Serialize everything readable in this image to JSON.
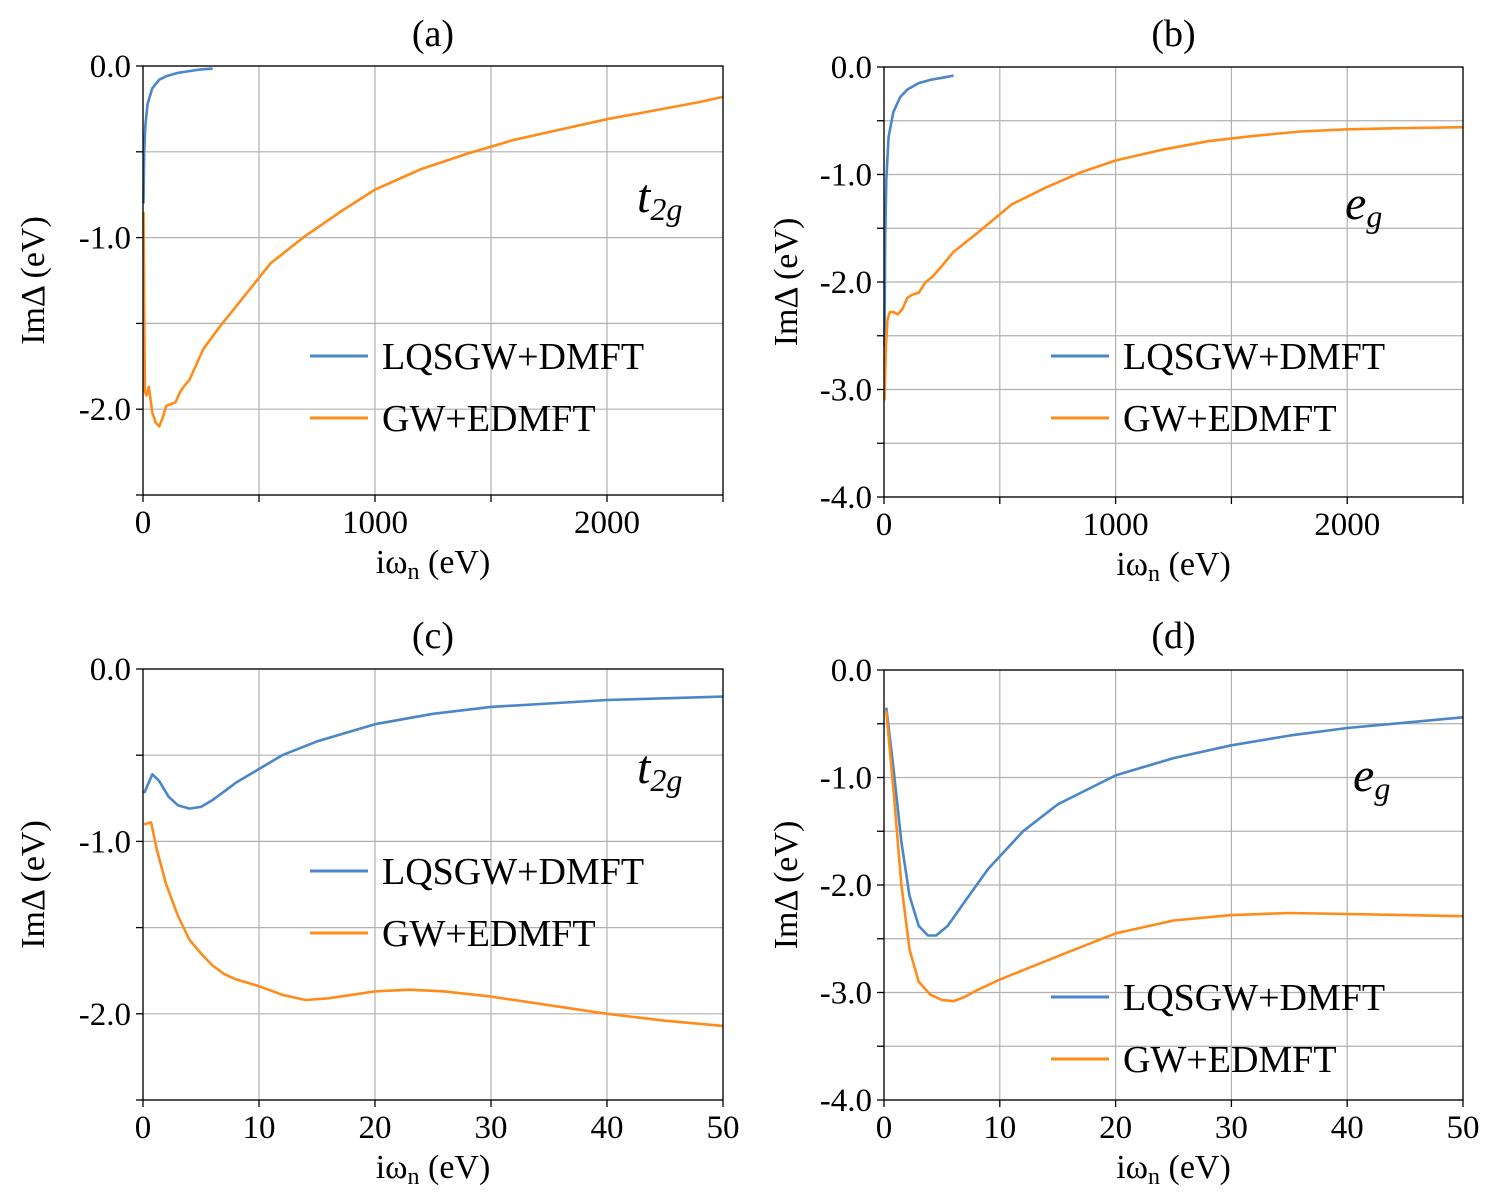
{
  "chart_data": [
    {
      "type": "line",
      "title": "(a)",
      "orbital": {
        "base": "t",
        "sub": "2g"
      },
      "xlabel": {
        "base": "iω",
        "sub": "n",
        "unit": " (eV)"
      },
      "ylabel": "ImΔ (eV)",
      "xlim": [
        0,
        2500
      ],
      "ylim": [
        -2.5,
        0.0
      ],
      "xticks": [
        0,
        1000,
        2000
      ],
      "xtick_labels": [
        "0",
        "1000",
        "2000"
      ],
      "xgrid": [
        0,
        500,
        1000,
        1500,
        2000,
        2500
      ],
      "yticks": [
        0.0,
        -1.0,
        -2.0
      ],
      "ytick_labels": [
        "0.0",
        "-1.0",
        "-2.0"
      ],
      "ygrid": [
        0.0,
        -0.5,
        -1.0,
        -1.5,
        -2.0,
        -2.5
      ],
      "legend": "center-right",
      "series": [
        {
          "name": "LQSGW+DMFT",
          "color": "#4a86c8",
          "x": [
            2,
            5,
            10,
            20,
            40,
            70,
            100,
            150,
            200,
            250,
            300
          ],
          "y": [
            -0.8,
            -0.5,
            -0.35,
            -0.22,
            -0.13,
            -0.08,
            -0.06,
            -0.04,
            -0.03,
            -0.02,
            -0.015
          ]
        },
        {
          "name": "GW+EDMFT",
          "color": "#ff8c1a",
          "x": [
            2,
            8,
            15,
            25,
            40,
            55,
            70,
            85,
            100,
            120,
            140,
            160,
            180,
            200,
            260,
            330,
            420,
            550,
            700,
            850,
            1000,
            1200,
            1400,
            1600,
            1800,
            2000,
            2200,
            2400,
            2500
          ],
          "y": [
            -0.85,
            -1.9,
            -1.92,
            -1.87,
            -2.02,
            -2.08,
            -2.1,
            -2.05,
            -1.98,
            -1.97,
            -1.96,
            -1.9,
            -1.86,
            -1.83,
            -1.65,
            -1.52,
            -1.37,
            -1.15,
            -0.99,
            -0.85,
            -0.72,
            -0.6,
            -0.51,
            -0.43,
            -0.37,
            -0.31,
            -0.26,
            -0.21,
            -0.18
          ]
        }
      ]
    },
    {
      "type": "line",
      "title": "(b)",
      "orbital": {
        "base": "e",
        "sub": "g"
      },
      "xlabel": {
        "base": "iω",
        "sub": "n",
        "unit": " (eV)"
      },
      "ylabel": "ImΔ (eV)",
      "xlim": [
        0,
        2500
      ],
      "ylim": [
        -4.0,
        0.0
      ],
      "xticks": [
        0,
        1000,
        2000
      ],
      "xtick_labels": [
        "0",
        "1000",
        "2000"
      ],
      "xgrid": [
        0,
        500,
        1000,
        1500,
        2000,
        2500
      ],
      "yticks": [
        0.0,
        -1.0,
        -2.0,
        -3.0,
        -4.0
      ],
      "ytick_labels": [
        "0.0",
        "-1.0",
        "-2.0",
        "-3.0",
        "-4.0"
      ],
      "ygrid": [
        0.0,
        -0.5,
        -1.0,
        -1.5,
        -2.0,
        -2.5,
        -3.0,
        -3.5,
        -4.0
      ],
      "legend": "center-right",
      "series": [
        {
          "name": "LQSGW+DMFT",
          "color": "#4a86c8",
          "x": [
            2,
            5,
            10,
            20,
            40,
            70,
            100,
            150,
            200,
            250,
            300
          ],
          "y": [
            -2.6,
            -1.6,
            -1.05,
            -0.65,
            -0.42,
            -0.28,
            -0.21,
            -0.15,
            -0.12,
            -0.1,
            -0.08
          ]
        },
        {
          "name": "GW+EDMFT",
          "color": "#ff8c1a",
          "x": [
            2,
            8,
            15,
            25,
            40,
            60,
            80,
            100,
            120,
            150,
            180,
            210,
            250,
            300,
            400,
            550,
            700,
            850,
            1000,
            1200,
            1400,
            1600,
            1800,
            2000,
            2200,
            2500
          ],
          "y": [
            -3.1,
            -2.6,
            -2.35,
            -2.28,
            -2.28,
            -2.3,
            -2.25,
            -2.15,
            -2.12,
            -2.1,
            -2.0,
            -1.95,
            -1.85,
            -1.72,
            -1.55,
            -1.28,
            -1.12,
            -0.98,
            -0.87,
            -0.77,
            -0.69,
            -0.64,
            -0.6,
            -0.58,
            -0.57,
            -0.56
          ]
        }
      ]
    },
    {
      "type": "line",
      "title": "(c)",
      "orbital": {
        "base": "t",
        "sub": "2g"
      },
      "xlabel": {
        "base": "iω",
        "sub": "n",
        "unit": " (eV)"
      },
      "ylabel": "ImΔ (eV)",
      "xlim": [
        0,
        50
      ],
      "ylim": [
        -2.5,
        0.0
      ],
      "xticks": [
        0,
        10,
        20,
        30,
        40,
        50
      ],
      "xtick_labels": [
        "0",
        "10",
        "20",
        "30",
        "40",
        "50"
      ],
      "xgrid": [
        0,
        10,
        20,
        30,
        40,
        50
      ],
      "yticks": [
        0.0,
        -1.0,
        -2.0
      ],
      "ytick_labels": [
        "0.0",
        "-1.0",
        "-2.0"
      ],
      "ygrid": [
        0.0,
        -0.5,
        -1.0,
        -1.5,
        -2.0,
        -2.5
      ],
      "legend": "center-right",
      "series": [
        {
          "name": "LQSGW+DMFT",
          "color": "#4a86c8",
          "x": [
            0.1,
            0.8,
            1.4,
            2.2,
            3,
            4,
            5,
            6,
            7,
            8,
            10,
            12,
            15,
            20,
            25,
            30,
            35,
            40,
            45,
            50
          ],
          "y": [
            -0.72,
            -0.61,
            -0.65,
            -0.74,
            -0.79,
            -0.81,
            -0.8,
            -0.76,
            -0.71,
            -0.66,
            -0.58,
            -0.5,
            -0.42,
            -0.32,
            -0.26,
            -0.22,
            -0.2,
            -0.18,
            -0.17,
            -0.16
          ]
        },
        {
          "name": "GW+EDMFT",
          "color": "#ff8c1a",
          "x": [
            0.1,
            0.7,
            1.2,
            2,
            3,
            4,
            5,
            6,
            7,
            8,
            10,
            12,
            14,
            16,
            18,
            20,
            23,
            26,
            30,
            35,
            40,
            45,
            50
          ],
          "y": [
            -0.9,
            -0.89,
            -1.05,
            -1.25,
            -1.43,
            -1.57,
            -1.65,
            -1.72,
            -1.77,
            -1.8,
            -1.84,
            -1.89,
            -1.92,
            -1.91,
            -1.89,
            -1.87,
            -1.86,
            -1.87,
            -1.9,
            -1.95,
            -2.0,
            -2.04,
            -2.07
          ]
        }
      ]
    },
    {
      "type": "line",
      "title": "(d)",
      "orbital": {
        "base": "e",
        "sub": "g"
      },
      "xlabel": {
        "base": "iω",
        "sub": "n",
        "unit": " (eV)"
      },
      "ylabel": "ImΔ (eV)",
      "xlim": [
        0,
        50
      ],
      "ylim": [
        -4.0,
        0.0
      ],
      "xticks": [
        0,
        10,
        20,
        30,
        40,
        50
      ],
      "xtick_labels": [
        "0",
        "10",
        "20",
        "30",
        "40",
        "50"
      ],
      "xgrid": [
        0,
        10,
        20,
        30,
        40,
        50
      ],
      "yticks": [
        0.0,
        -1.0,
        -2.0,
        -3.0,
        -4.0
      ],
      "ytick_labels": [
        "0.0",
        "-1.0",
        "-2.0",
        "-3.0",
        "-4.0"
      ],
      "ygrid": [
        0.0,
        -0.5,
        -1.0,
        -1.5,
        -2.0,
        -2.5,
        -3.0,
        -3.5,
        -4.0
      ],
      "legend": "lower-right",
      "series": [
        {
          "name": "LQSGW+DMFT",
          "color": "#4a86c8",
          "x": [
            0.2,
            0.8,
            1.5,
            2.2,
            3,
            3.8,
            4.5,
            5.5,
            7,
            9,
            12,
            15,
            20,
            25,
            30,
            35,
            40,
            45,
            50
          ],
          "y": [
            -0.35,
            -0.9,
            -1.6,
            -2.1,
            -2.38,
            -2.47,
            -2.47,
            -2.38,
            -2.15,
            -1.85,
            -1.5,
            -1.25,
            -0.98,
            -0.82,
            -0.7,
            -0.61,
            -0.54,
            -0.49,
            -0.44
          ]
        },
        {
          "name": "GW+EDMFT",
          "color": "#ff8c1a",
          "x": [
            0.2,
            0.8,
            1.5,
            2.2,
            3,
            4,
            5,
            6,
            7,
            8,
            10,
            13,
            16,
            20,
            25,
            30,
            35,
            40,
            45,
            50
          ],
          "y": [
            -0.38,
            -1.1,
            -2.0,
            -2.6,
            -2.9,
            -3.02,
            -3.07,
            -3.08,
            -3.04,
            -2.98,
            -2.88,
            -2.75,
            -2.62,
            -2.45,
            -2.33,
            -2.28,
            -2.26,
            -2.27,
            -2.28,
            -2.29
          ]
        }
      ]
    }
  ]
}
